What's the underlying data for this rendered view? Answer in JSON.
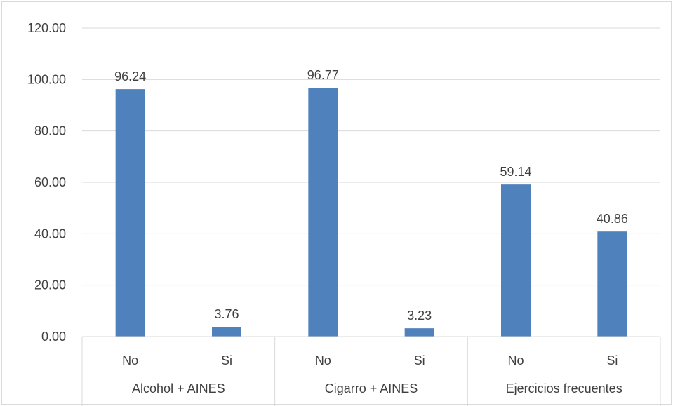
{
  "chart_data": {
    "type": "bar",
    "title": "",
    "xlabel": "",
    "ylabel": "",
    "ylim": [
      0,
      120
    ],
    "yticks": [
      "0.00",
      "20.00",
      "40.00",
      "60.00",
      "80.00",
      "100.00",
      "120.00"
    ],
    "grid": true,
    "bar_color": "#4f81bd",
    "groups": [
      {
        "label": "Alcohol +  AINES",
        "categories": [
          "No",
          "Si"
        ],
        "values": [
          96.24,
          3.76
        ],
        "value_labels": [
          "96.24",
          "3.76"
        ]
      },
      {
        "label": "Cigarro + AINES",
        "categories": [
          "No",
          "Si"
        ],
        "values": [
          96.77,
          3.23
        ],
        "value_labels": [
          "96.77",
          "3.23"
        ]
      },
      {
        "label": "Ejercicios frecuentes",
        "categories": [
          "No",
          "Si"
        ],
        "values": [
          59.14,
          40.86
        ],
        "value_labels": [
          "59.14",
          "40.86"
        ]
      }
    ]
  }
}
